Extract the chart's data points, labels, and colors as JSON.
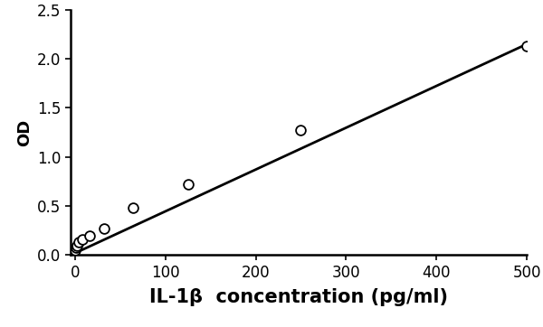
{
  "scatter_x": [
    0,
    1,
    2,
    4,
    8,
    16,
    32,
    64,
    125,
    250,
    500
  ],
  "scatter_y": [
    0.05,
    0.08,
    0.1,
    0.13,
    0.16,
    0.2,
    0.27,
    0.48,
    0.72,
    1.27,
    2.13
  ],
  "line_x": [
    0,
    500
  ],
  "line_slope": 0.00426,
  "line_intercept": 0.02,
  "xlabel": "IL-1β  concentration (pg/ml)",
  "ylabel": "OD",
  "xlim": [
    -5,
    500
  ],
  "ylim": [
    0,
    2.5
  ],
  "xticks": [
    0,
    100,
    200,
    300,
    400,
    500
  ],
  "yticks": [
    0,
    0.5,
    1.0,
    1.5,
    2.0,
    2.5
  ],
  "line_color": "#000000",
  "scatter_facecolor": "#ffffff",
  "scatter_edgecolor": "#000000",
  "background_color": "#ffffff",
  "xlabel_fontsize": 15,
  "ylabel_fontsize": 13,
  "tick_fontsize": 12,
  "scatter_size": 60,
  "scatter_linewidth": 1.3,
  "line_linewidth": 2.0
}
